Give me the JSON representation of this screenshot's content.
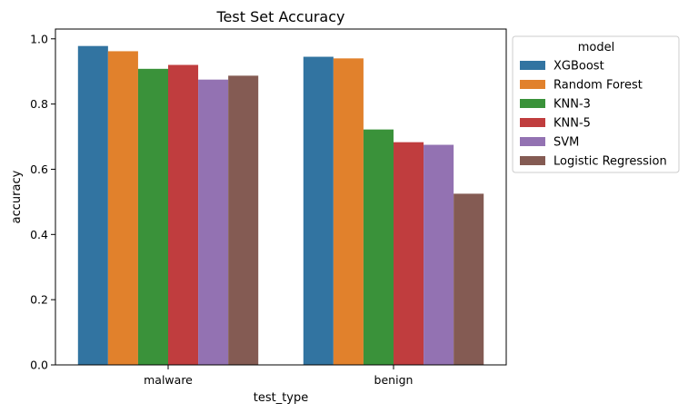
{
  "chart_data": {
    "type": "bar",
    "title": "Test Set Accuracy",
    "xlabel": "test_type",
    "ylabel": "accuracy",
    "categories": [
      "malware",
      "benign"
    ],
    "ylim": [
      0,
      1.03
    ],
    "yticks": [
      "0.0",
      "0.2",
      "0.4",
      "0.6",
      "0.8",
      "1.0"
    ],
    "grid": false,
    "legend": {
      "title": "model",
      "placement": "outside-right-top"
    },
    "series": [
      {
        "name": "XGBoost",
        "color": "#3274a1",
        "values": [
          0.978,
          0.945
        ]
      },
      {
        "name": "Random Forest",
        "color": "#e1812c",
        "values": [
          0.962,
          0.94
        ]
      },
      {
        "name": "KNN-3",
        "color": "#3a923a",
        "values": [
          0.908,
          0.722
        ]
      },
      {
        "name": "KNN-5",
        "color": "#c03d3e",
        "values": [
          0.92,
          0.683
        ]
      },
      {
        "name": "SVM",
        "color": "#9372b2",
        "values": [
          0.875,
          0.675
        ]
      },
      {
        "name": "Logistic Regression",
        "color": "#845b53",
        "values": [
          0.887,
          0.525
        ]
      }
    ]
  }
}
